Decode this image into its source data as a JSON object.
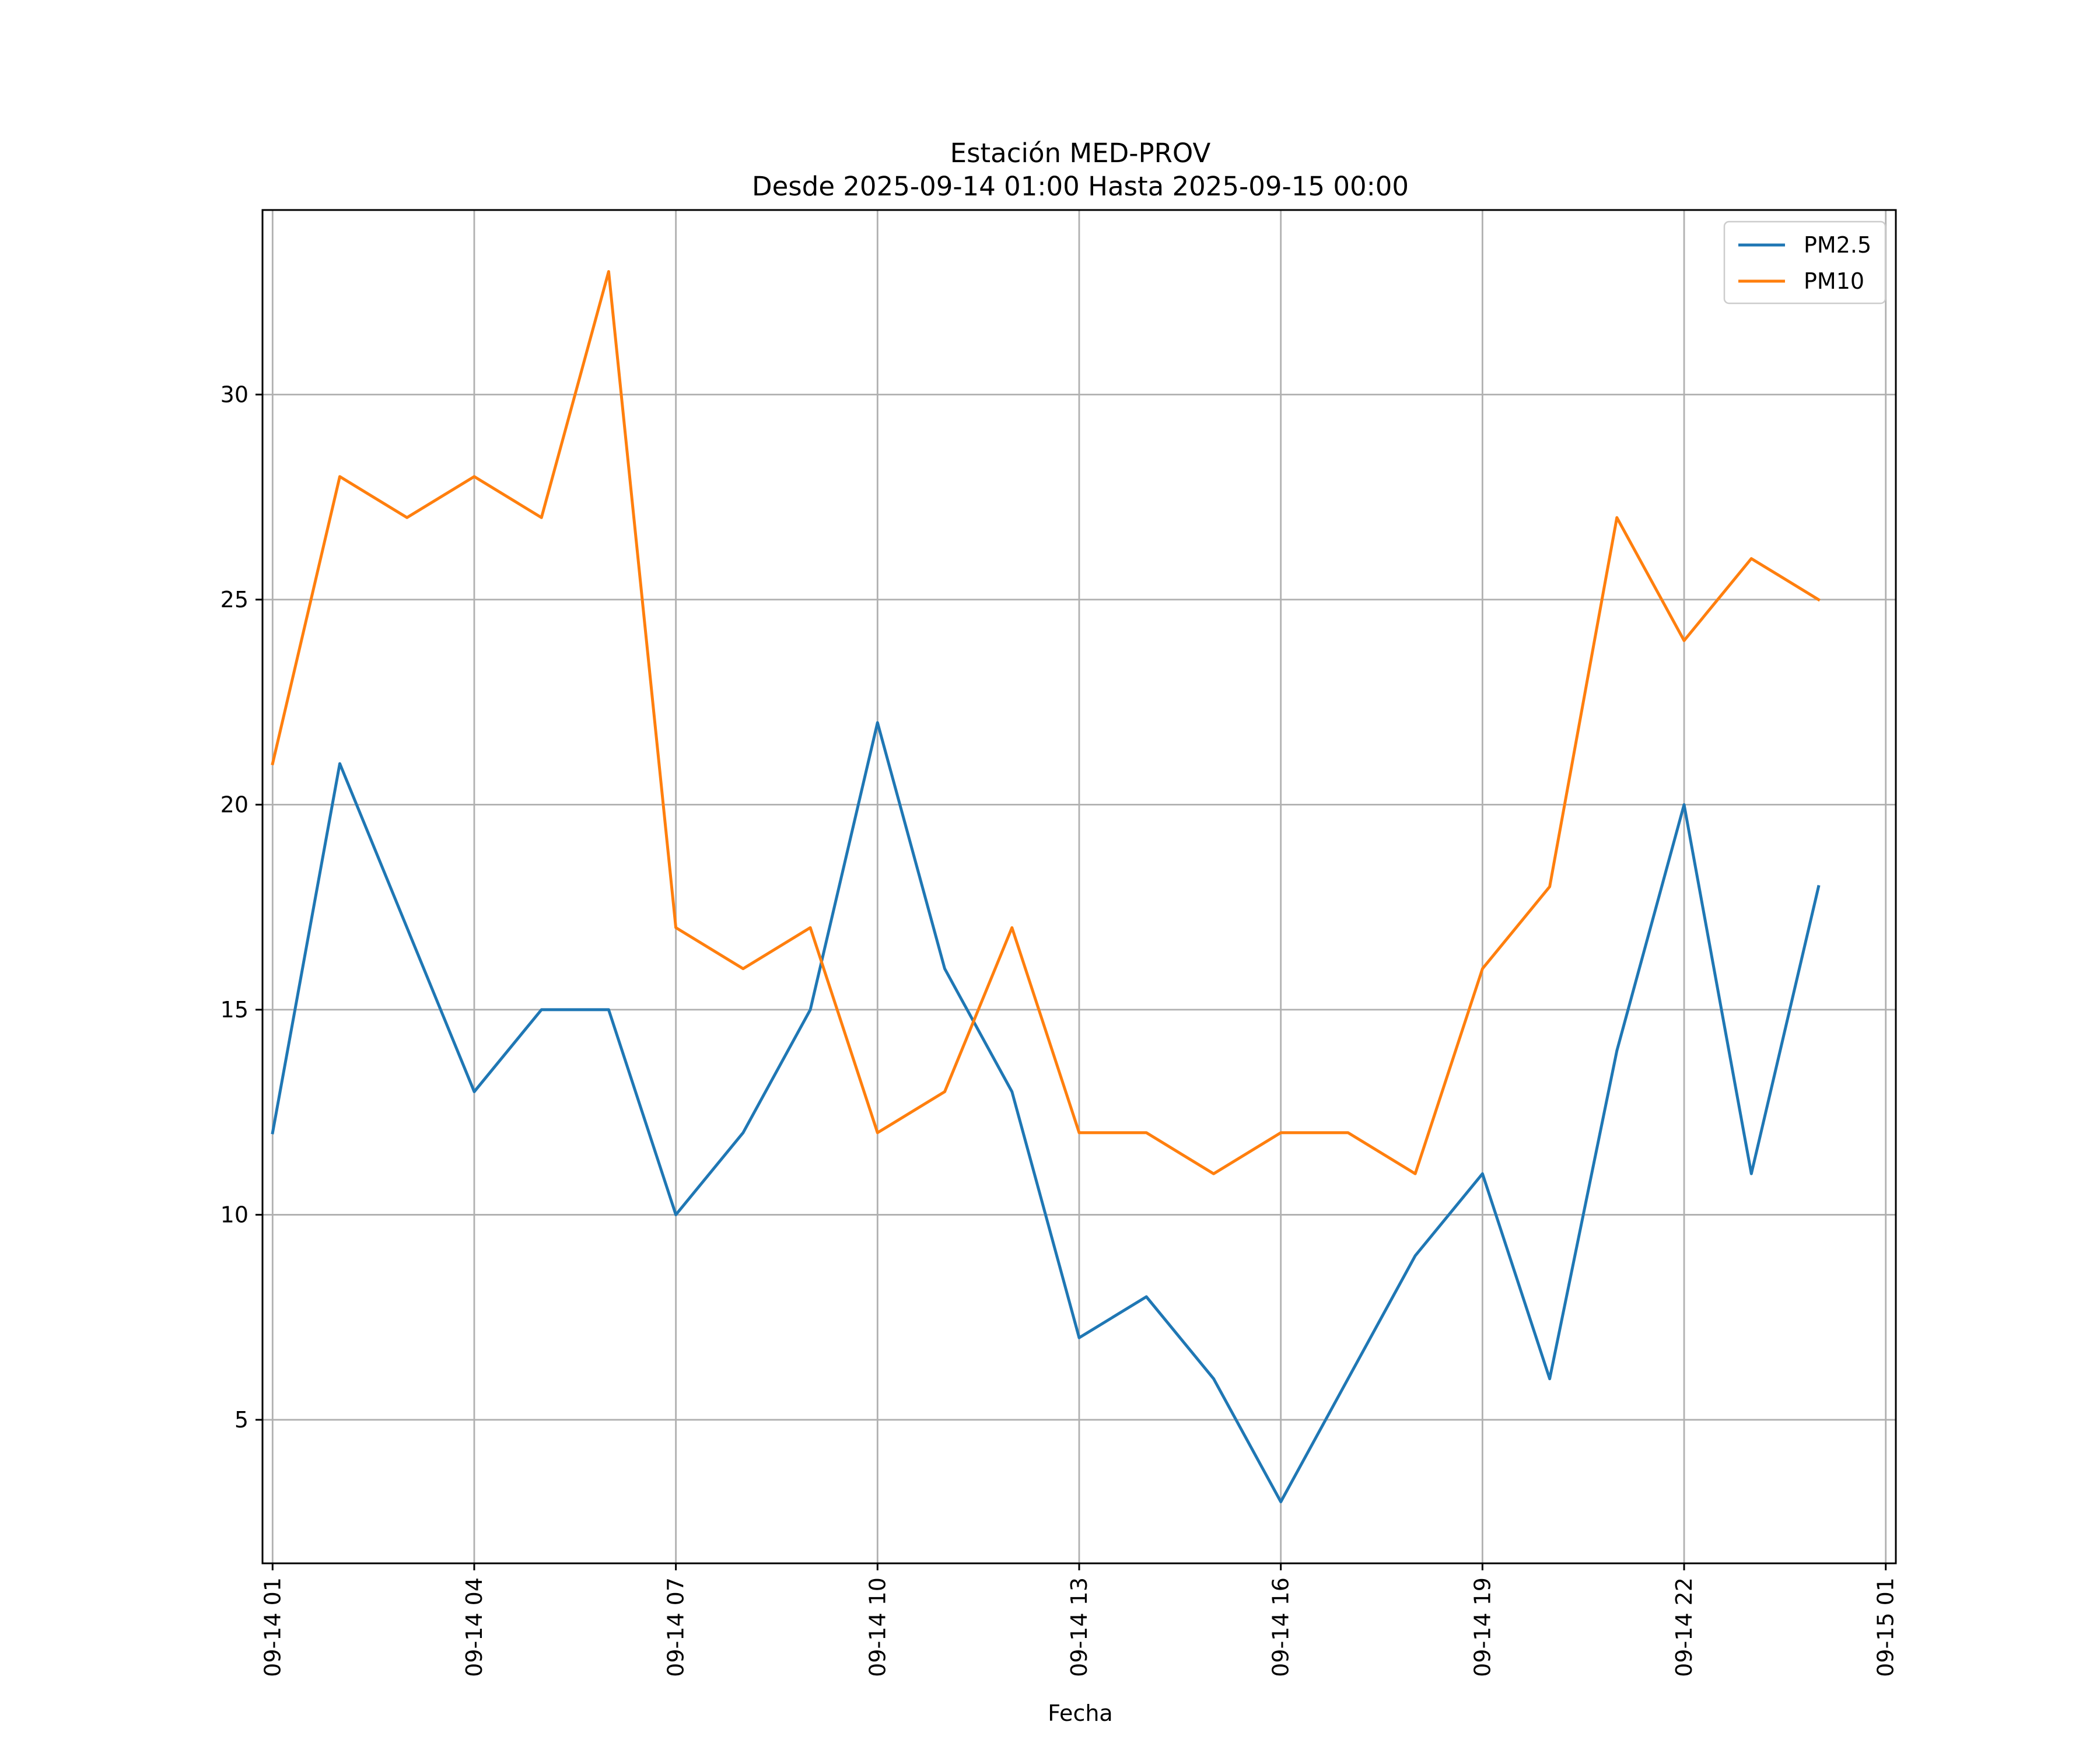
{
  "chart_data": {
    "type": "line",
    "title": "Estación MED-PROV",
    "subtitle": "Desde 2025-09-14 01:00 Hasta 2025-09-15 00:00",
    "xlabel": "Fecha",
    "ylabel": "",
    "grid": true,
    "legend_position": "top-right",
    "xlim": [
      -0.15,
      24.15
    ],
    "ylim": [
      1.5,
      34.5
    ],
    "y_ticks": [
      5,
      10,
      15,
      20,
      25,
      30
    ],
    "x_ticks": [
      {
        "pos": 0,
        "label": "09-14 01"
      },
      {
        "pos": 3,
        "label": "09-14 04"
      },
      {
        "pos": 6,
        "label": "09-14 07"
      },
      {
        "pos": 9,
        "label": "09-14 10"
      },
      {
        "pos": 12,
        "label": "09-14 13"
      },
      {
        "pos": 15,
        "label": "09-14 16"
      },
      {
        "pos": 18,
        "label": "09-14 19"
      },
      {
        "pos": 21,
        "label": "09-14 22"
      },
      {
        "pos": 24,
        "label": "09-15 01"
      }
    ],
    "x": [
      0,
      1,
      2,
      3,
      4,
      5,
      6,
      7,
      8,
      9,
      10,
      11,
      12,
      13,
      14,
      15,
      16,
      17,
      18,
      19,
      20,
      21,
      22,
      23
    ],
    "series": [
      {
        "name": "PM2.5",
        "color": "#1f77b4",
        "values": [
          12,
          21,
          17,
          13,
          15,
          15,
          10,
          12,
          15,
          22,
          16,
          13,
          7,
          8,
          6,
          3,
          6,
          9,
          11,
          6,
          14,
          20,
          11,
          18
        ]
      },
      {
        "name": "PM10",
        "color": "#ff7f0e",
        "values": [
          21,
          28,
          27,
          28,
          27,
          33,
          17,
          16,
          17,
          12,
          13,
          17,
          12,
          12,
          11,
          12,
          12,
          11,
          16,
          18,
          27,
          24,
          26,
          25
        ]
      }
    ]
  }
}
